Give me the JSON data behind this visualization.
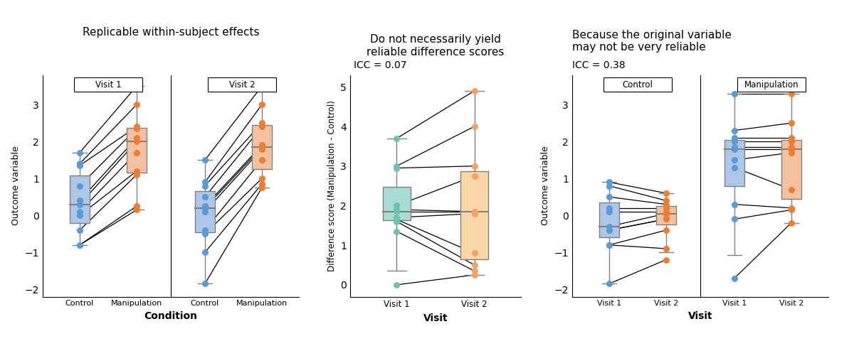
{
  "title1": "Replicable within-subject effects",
  "title2": "Do not necessarily yield\nreliable difference scores",
  "title2_icc": "ICC = 0.07",
  "title3": "Because the original variable\nmay not be very reliable",
  "title3_icc": "ICC = 0.38",
  "panel1_facet_labels": [
    "Visit 1",
    "Visit 2"
  ],
  "panel1_xlabel": "Condition",
  "panel1_ylabel": "Outcome variable",
  "panel1_xlabels": [
    "Control",
    "Manipulation"
  ],
  "panel1_ylim": [
    -2.2,
    3.8
  ],
  "panel1_yticks": [
    -2,
    -1,
    0,
    1,
    2,
    3
  ],
  "panel2_xlabel": "Visit",
  "panel2_ylabel": "Difference score (Manipulation - Control)",
  "panel2_xlabels": [
    "Visit 1",
    "Visit 2"
  ],
  "panel2_ylim": [
    -0.3,
    5.3
  ],
  "panel2_yticks": [
    0,
    1,
    2,
    3,
    4,
    5
  ],
  "panel3_facet_labels": [
    "Control",
    "Manipulation"
  ],
  "panel3_xlabel": "Visit",
  "panel3_ylabel": "Outcome variable",
  "panel3_xlabels": [
    "Visit 1",
    "Visit 2"
  ],
  "panel3_ylim": [
    -2.2,
    3.8
  ],
  "panel3_yticks": [
    -2,
    -1,
    0,
    1,
    2,
    3
  ],
  "color_blue": "#5B9BD5",
  "color_orange": "#ED7D31",
  "color_teal": "#70C1B3",
  "color_yellow_orange": "#F4A261",
  "color_box_blue": "#AEC6E8",
  "color_box_orange": "#F4C2A1",
  "color_box_teal": "#A8DDD4",
  "color_box_yellow": "#FAD7A8",
  "bg_color": "#FFFFFF",
  "line_color": "#000000",
  "p1_visit1_control": [
    -0.8,
    -0.8,
    -0.4,
    0.0,
    0.1,
    0.3,
    0.4,
    0.8,
    1.35,
    1.4,
    1.7
  ],
  "p1_visit1_manip": [
    0.15,
    0.25,
    1.1,
    1.2,
    1.7,
    2.0,
    2.1,
    2.35,
    2.4,
    3.0,
    3.5
  ],
  "p1_visit2_control": [
    -1.85,
    -1.0,
    -0.5,
    -0.4,
    0.1,
    0.2,
    0.25,
    0.5,
    0.8,
    0.9,
    1.5
  ],
  "p1_visit2_manip": [
    0.75,
    0.85,
    1.0,
    1.5,
    1.8,
    1.85,
    1.9,
    2.4,
    2.5,
    3.0,
    3.5
  ],
  "p2_visit1_diff": [
    0.0,
    1.35,
    1.6,
    1.65,
    1.7,
    1.85,
    1.9,
    2.0,
    2.95,
    3.0,
    3.7
  ],
  "p2_visit2_diff": [
    0.25,
    0.35,
    0.5,
    0.8,
    1.8,
    1.85,
    1.85,
    2.75,
    3.0,
    4.0,
    4.9
  ],
  "p3_ctrl_visit1": [
    -1.85,
    -0.8,
    -0.8,
    -0.4,
    -0.4,
    -0.3,
    0.1,
    0.2,
    0.5,
    0.8,
    0.9
  ],
  "p3_ctrl_visit2": [
    -1.2,
    -0.9,
    -0.4,
    -0.1,
    -0.1,
    0.05,
    0.1,
    0.2,
    0.3,
    0.4,
    0.6
  ],
  "p3_manip_visit1": [
    -1.7,
    -0.1,
    0.3,
    1.3,
    1.5,
    1.8,
    1.85,
    2.0,
    2.1,
    2.3,
    3.3
  ],
  "p3_manip_visit2": [
    -0.2,
    0.15,
    0.2,
    0.7,
    1.7,
    1.8,
    1.85,
    2.0,
    2.1,
    2.5,
    3.3
  ]
}
